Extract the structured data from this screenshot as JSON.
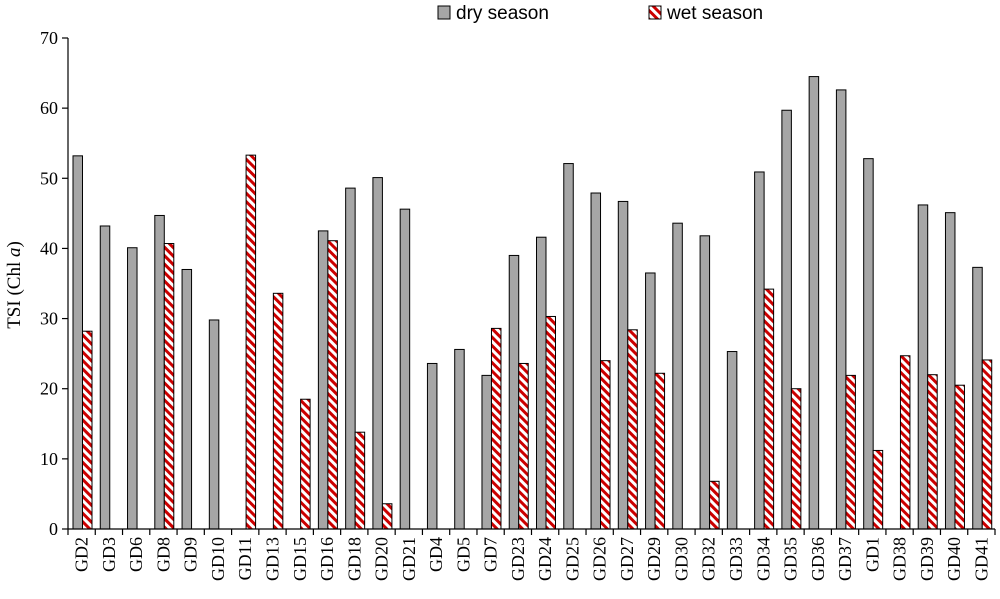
{
  "chart_data": {
    "type": "bar",
    "title": "",
    "xlabel": "",
    "ylabel": "TSI (Chl a)",
    "ylabel_main": "TSI (Chl ",
    "ylabel_italic": "a",
    "ylabel_close": ")",
    "ylim": [
      0,
      70
    ],
    "yticks": [
      0,
      10,
      20,
      30,
      40,
      50,
      60,
      70
    ],
    "grid": false,
    "legend_position": "top-center",
    "categories": [
      "GD2",
      "GD3",
      "GD6",
      "GD8",
      "GD9",
      "GD10",
      "GD11",
      "GD13",
      "GD15",
      "GD16",
      "GD18",
      "GD20",
      "GD21",
      "GD4",
      "GD5",
      "GD7",
      "GD23",
      "GD24",
      "GD25",
      "GD26",
      "GD27",
      "GD29",
      "GD30",
      "GD32",
      "GD33",
      "GD34",
      "GD35",
      "GD36",
      "GD37",
      "GD1",
      "GD38",
      "GD39",
      "GD40",
      "GD41"
    ],
    "series": [
      {
        "name": "dry season",
        "color": "#a6a6a6",
        "pattern": "solid",
        "values": [
          53.2,
          43.2,
          40.1,
          44.7,
          37.0,
          29.8,
          null,
          null,
          null,
          42.5,
          48.6,
          50.1,
          45.6,
          23.6,
          25.6,
          21.9,
          39.0,
          41.6,
          52.1,
          47.9,
          46.7,
          36.5,
          43.6,
          41.8,
          25.3,
          50.9,
          59.7,
          64.5,
          62.6,
          52.8,
          null,
          46.2,
          45.1,
          37.3
        ]
      },
      {
        "name": "wet season",
        "color": "#cc0000",
        "pattern": "diagonal-hatch",
        "values": [
          28.2,
          null,
          null,
          40.7,
          null,
          null,
          53.3,
          33.6,
          18.5,
          41.1,
          13.8,
          3.6,
          null,
          null,
          null,
          28.6,
          23.6,
          30.3,
          null,
          24.0,
          28.4,
          22.2,
          null,
          6.8,
          null,
          34.2,
          20.0,
          null,
          21.9,
          11.2,
          24.7,
          22.0,
          20.5,
          24.1
        ]
      }
    ]
  }
}
